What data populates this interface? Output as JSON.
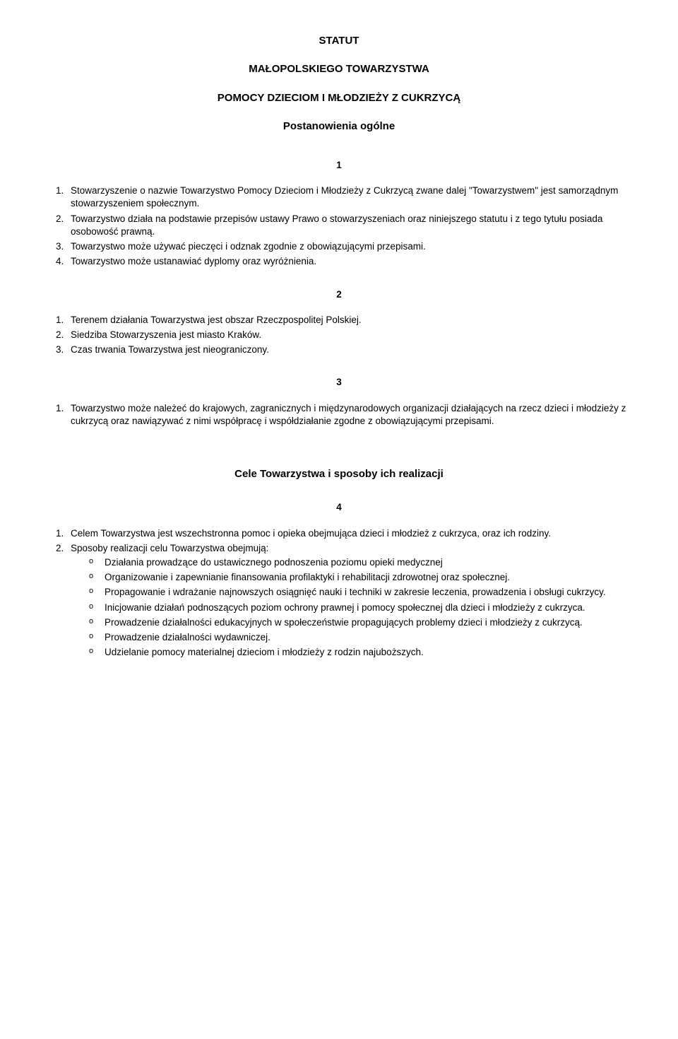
{
  "title": {
    "line1": "STATUT",
    "line2": "MAŁOPOLSKIEGO TOWARZYSTWA",
    "line3": "POMOCY DZIECIOM I MŁODZIEŻY Z CUKRZYCĄ",
    "subtitle": "Postanowienia ogólne"
  },
  "sec1": {
    "num": "1",
    "items": [
      "Stowarzyszenie o nazwie Towarzystwo Pomocy Dzieciom i Młodzieży z Cukrzycą zwane dalej \"Towarzystwem\" jest samorządnym stowarzyszeniem społecznym.",
      "Towarzystwo działa na podstawie przepisów ustawy Prawo o stowarzyszeniach oraz niniejszego statutu i z tego tytułu posiada osobowość prawną.",
      "Towarzystwo może używać pieczęci i odznak zgodnie z obowiązującymi przepisami.",
      "Towarzystwo może ustanawiać dyplomy oraz wyróżnienia."
    ]
  },
  "sec2": {
    "num": "2",
    "items": [
      "Terenem działania Towarzystwa jest obszar Rzeczpospolitej Polskiej.",
      "Siedziba Stowarzyszenia jest miasto Kraków.",
      "Czas trwania Towarzystwa jest nieograniczony."
    ]
  },
  "sec3": {
    "num": "3",
    "items": [
      "Towarzystwo może należeć do krajowych, zagranicznych i międzynarodowych organizacji działających na rzecz dzieci i młodzieży z cukrzycą oraz nawiązywać z nimi współpracę i współdziałanie zgodne z obowiązującymi przepisami."
    ]
  },
  "heading2": "Cele Towarzystwa i sposoby ich realizacji",
  "sec4": {
    "num": "4",
    "item1": "Celem Towarzystwa jest wszechstronna pomoc i opieka obejmująca dzieci i młodzież z cukrzyca, oraz ich rodziny.",
    "item2": "Sposoby realizacji celu Towarzystwa obejmują:",
    "sub": [
      "Działania prowadzące do ustawicznego podnoszenia poziomu opieki medycznej",
      "Organizowanie i zapewnianie finansowania profilaktyki i rehabilitacji zdrowotnej oraz społecznej.",
      "Propagowanie i wdrażanie najnowszych osiągnięć nauki i techniki w zakresie leczenia, prowadzenia i obsługi cukrzycy.",
      "Inicjowanie działań podnoszących poziom ochrony prawnej i pomocy społecznej dla dzieci i młodzieży z cukrzyca.",
      "Prowadzenie działalności edukacyjnych w społeczeństwie propagujących problemy dzieci i młodzieży z cukrzycą.",
      "Prowadzenie działalności wydawniczej.",
      "Udzielanie pomocy materialnej dzieciom i młodzieży z rodzin najuboższych."
    ]
  }
}
